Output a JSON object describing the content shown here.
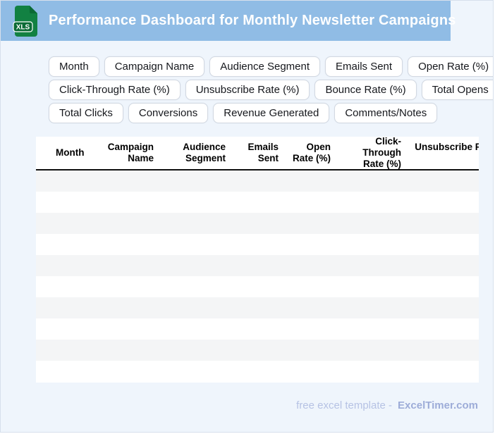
{
  "header": {
    "title": "Performance Dashboard for Monthly Newsletter Campaigns",
    "file_badge": "XLS"
  },
  "chips": {
    "rows": [
      [
        "Month",
        "Campaign Name",
        "Audience Segment",
        "Emails Sent",
        "Open Rate (%)"
      ],
      [
        "Click-Through Rate (%)",
        "Unsubscribe Rate (%)",
        "Bounce Rate (%)",
        "Total Opens"
      ],
      [
        "Total Clicks",
        "Conversions",
        "Revenue Generated",
        "Comments/Notes"
      ]
    ]
  },
  "table": {
    "columns": [
      {
        "label": "Month",
        "align": "left"
      },
      {
        "label": "Campaign Name",
        "align": "right"
      },
      {
        "label": "Audience Segment",
        "align": "right"
      },
      {
        "label": "Emails Sent",
        "align": "right"
      },
      {
        "label": "Open Rate (%)",
        "align": "right"
      },
      {
        "label": "Click-Through Rate (%)",
        "align": "right"
      },
      {
        "label": "Unsubscribe Rate (%)",
        "align": "right"
      }
    ],
    "row_count": 10,
    "rows": []
  },
  "footer": {
    "prefix": "free excel template -",
    "brand": "ExcelTimer.com"
  },
  "colors": {
    "page_bg": "#eff5fc",
    "header_bg": "#90bce5",
    "icon_body_green": "#128142",
    "icon_fold_green": "#0b6a35",
    "icon_badge_green": "#0c6b36",
    "stripe": "#f4f5f6",
    "footer_prefix": "#b6c2e4",
    "footer_brand": "#9dacd8",
    "header_rule": "#101010"
  }
}
